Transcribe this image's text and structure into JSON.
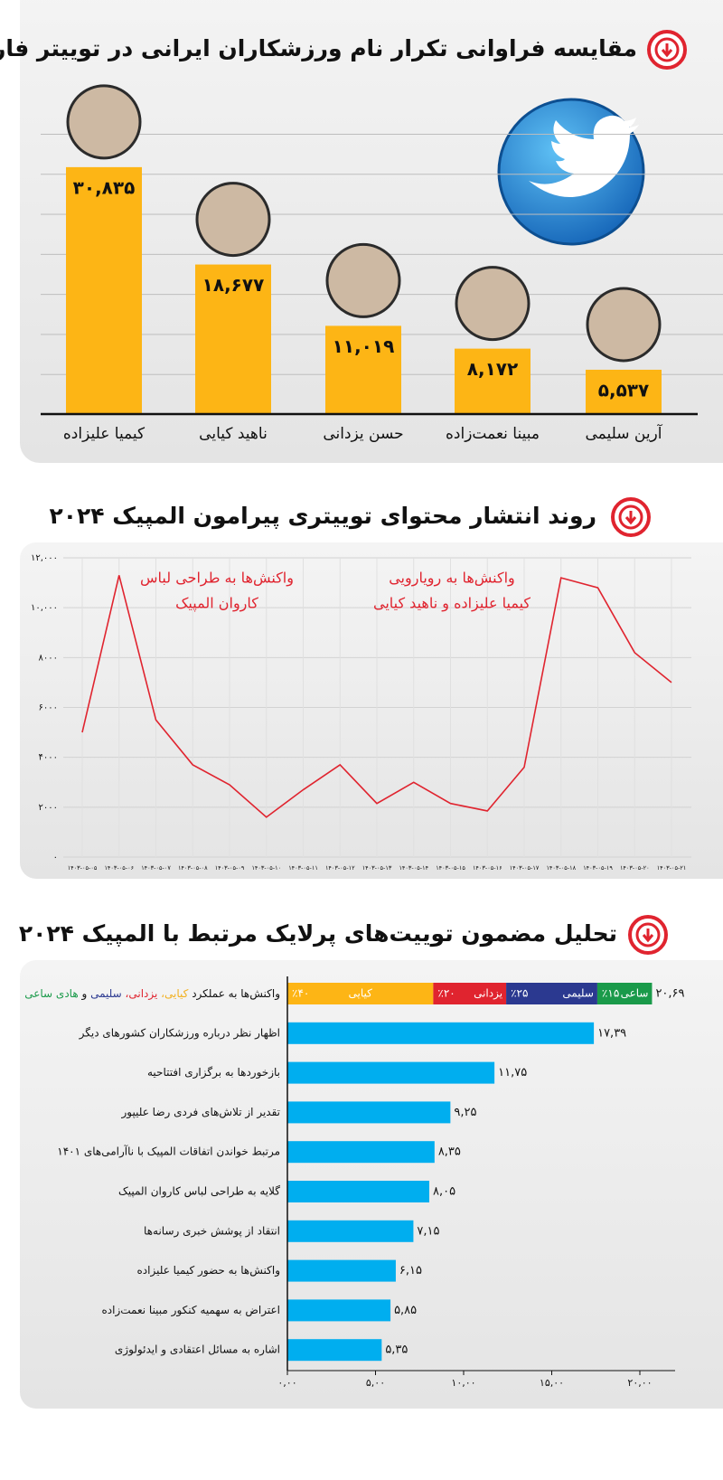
{
  "chart_data": [
    {
      "type": "bar",
      "title": "مقایسه فراوانی تکرار نام ورزشکاران ایرانی در توییتر فارسی",
      "categories": [
        "کیمیا علیزاده",
        "ناهید کیایی",
        "حسن یزدانی",
        "مبینا نعمت‌زاده",
        "آرین سلیمی"
      ],
      "values": [
        30835,
        18677,
        11019,
        8172,
        5537
      ],
      "value_labels": [
        "۳۰,۸۳۵",
        "۱۸,۶۷۷",
        "۱۱,۰۱۹",
        "۸,۱۷۲",
        "۵,۵۳۷"
      ],
      "color": "#fdb515",
      "ylim": [
        0,
        35000
      ],
      "grid": true
    },
    {
      "type": "line",
      "title": "روند انتشار محتوای توییتری پیرامون المپیک ۲۰۲۴",
      "categories": [
        "۱۴۰۳-۰۵-۰۵",
        "۱۴۰۳-۰۵-۰۶",
        "۱۴۰۳-۰۵-۰۷",
        "۱۴۰۳-۰۵-۰۸",
        "۱۴۰۳-۰۵-۰۹",
        "۱۴۰۳-۰۵-۱۰",
        "۱۴۰۳-۰۵-۱۱",
        "۱۴۰۳-۰۵-۱۲",
        "۱۴۰۳-۰۵-۱۳",
        "۱۴۰۳-۰۵-۱۴",
        "۱۴۰۳-۰۵-۱۵",
        "۱۴۰۳-۰۵-۱۶",
        "۱۴۰۳-۰۵-۱۷",
        "۱۴۰۳-۰۵-۱۸",
        "۱۴۰۳-۰۵-۱۹",
        "۱۴۰۳-۰۵-۲۰",
        "۱۴۰۳-۰۵-۲۱"
      ],
      "values": [
        5000,
        11300,
        5500,
        3700,
        2900,
        1600,
        2700,
        3700,
        2150,
        3000,
        2150,
        1850,
        3600,
        11200,
        10800,
        8200,
        7000
      ],
      "color": "#e0242f",
      "ylim": [
        0,
        12000
      ],
      "yticks": [
        {
          "value": 0,
          "label": "۰"
        },
        {
          "value": 2000,
          "label": "۲۰۰۰"
        },
        {
          "value": 4000,
          "label": "۴۰۰۰"
        },
        {
          "value": 6000,
          "label": "۶۰۰۰"
        },
        {
          "value": 8000,
          "label": "۸۰۰۰"
        },
        {
          "value": 10000,
          "label": "۱۰,۰۰۰"
        },
        {
          "value": 12000,
          "label": "۱۲,۰۰۰"
        }
      ],
      "grid": true,
      "annotations": [
        {
          "lines": [
            "واکنش‌ها به طراحی لباس",
            "کاروان المپیک"
          ],
          "color": "#e0242f"
        },
        {
          "lines": [
            "واکنش‌ها به رویارویی",
            "کیمیا علیزاده و ناهید کیایی"
          ],
          "color": "#e0242f"
        }
      ]
    },
    {
      "type": "hbar",
      "title": "تحلیل مضمون توییت‌های پرلایک مرتبط با المپیک ۲۰۲۴",
      "breakdown": {
        "label_parts": [
          {
            "text": "واکنش‌ها به عملکرد",
            "color": "#111111"
          },
          {
            "text": "کیایی،",
            "color": "#f2b01e"
          },
          {
            "text": "یزدانی،",
            "color": "#e0242f"
          },
          {
            "text": "سلیمی",
            "color": "#2b3990"
          },
          {
            "text": "و",
            "color": "#111111"
          },
          {
            "text": "هادی ساعی",
            "color": "#1a9a4a"
          }
        ],
        "value": 20.69,
        "value_label": "۲۰,۶۹",
        "segments": [
          {
            "name": "کیایی",
            "value": 40,
            "label": "٪۴۰",
            "color": "#fdb515"
          },
          {
            "name": "یزدانی",
            "value": 20,
            "label": "٪۲۰",
            "color": "#e0242f"
          },
          {
            "name": "سلیمی",
            "value": 25,
            "label": "٪۲۵",
            "color": "#2b3990"
          },
          {
            "name": "ساعی",
            "value": 15,
            "label": "٪۱۵",
            "color": "#1a9a4a"
          }
        ]
      },
      "categories": [
        "اظهار نظر درباره ورزشکاران کشورهای دیگر",
        "بازخوردها به برگزاری افتتاحیه",
        "تقدیر از تلاش‌های فردی رضا علیپور",
        "مرتبط خواندن اتفاقات المپیک با ناآرامی‌های ۱۴۰۱",
        "گلایه به طراحی لباس کاروان المپیک",
        "انتقاد از پوشش خبری رسانه‌ها",
        "واکنش‌ها به حضور کیمیا علیزاده",
        "اعتراض به سهمیه کنکور مبینا نعمت‌زاده",
        "اشاره به مسائل اعتقادی و ایدئولوژی"
      ],
      "values": [
        17.39,
        11.75,
        9.25,
        8.35,
        8.05,
        7.15,
        6.15,
        5.85,
        5.35
      ],
      "value_labels": [
        "۱۷,۳۹",
        "۱۱,۷۵",
        "۹,۲۵",
        "۸,۳۵",
        "۸,۰۵",
        "۷,۱۵",
        "۶,۱۵",
        "۵,۸۵",
        "۵,۳۵"
      ],
      "color": "#00aeef",
      "xlim": [
        0,
        22
      ],
      "xticks": [
        {
          "value": 0,
          "label": "۰,۰۰"
        },
        {
          "value": 5,
          "label": "۵,۰۰"
        },
        {
          "value": 10,
          "label": "۱۰,۰۰"
        },
        {
          "value": 15,
          "label": "۱۵,۰۰"
        },
        {
          "value": 20,
          "label": "۲۰,۰۰"
        }
      ]
    }
  ]
}
